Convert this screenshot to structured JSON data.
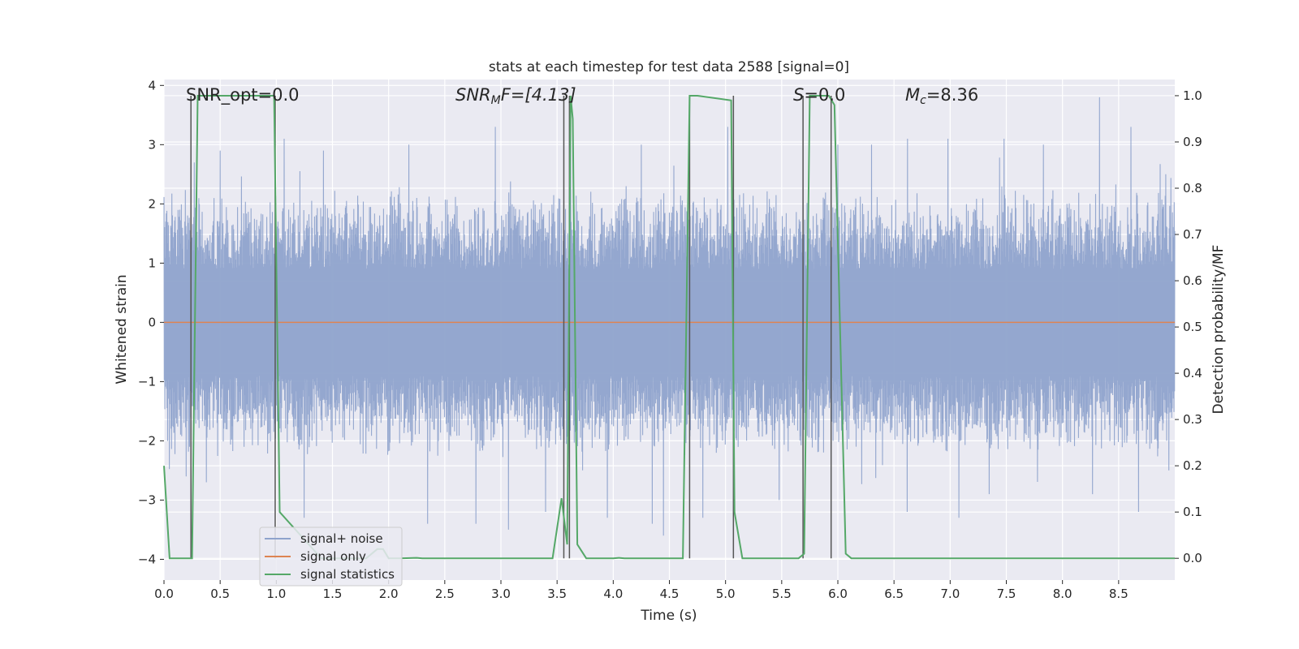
{
  "chart_data": {
    "type": "line",
    "title": "stats at each timestep for test data 2588 [signal=0]",
    "xlabel": "Time (s)",
    "ylabel_left": "Whitened strain",
    "ylabel_right": "Detection probability/MF",
    "xlim": [
      0.0,
      9.0
    ],
    "ylim_left": [
      -4.35,
      4.1
    ],
    "ylim_right": [
      -0.047,
      1.035
    ],
    "x_ticks": [
      0.0,
      0.5,
      1.0,
      1.5,
      2.0,
      2.5,
      3.0,
      3.5,
      4.0,
      4.5,
      5.0,
      5.5,
      6.0,
      6.5,
      7.0,
      7.5,
      8.0,
      8.5
    ],
    "x_tick_labels": [
      "0.0",
      "0.5",
      "1.0",
      "1.5",
      "2.0",
      "2.5",
      "3.0",
      "3.5",
      "4.0",
      "4.5",
      "5.0",
      "5.5",
      "6.0",
      "6.5",
      "7.0",
      "7.5",
      "8.0",
      "8.5"
    ],
    "y_ticks_left": [
      -4,
      -3,
      -2,
      -1,
      0,
      1,
      2,
      3,
      4
    ],
    "y_tick_labels_left": [
      "−4",
      "−3",
      "−2",
      "−1",
      "0",
      "1",
      "2",
      "3",
      "4"
    ],
    "y_ticks_right": [
      0.0,
      0.1,
      0.2,
      0.3,
      0.4,
      0.5,
      0.6,
      0.7,
      0.8,
      0.9,
      1.0
    ],
    "y_tick_labels_right": [
      "0.0",
      "0.1",
      "0.2",
      "0.3",
      "0.4",
      "0.5",
      "0.6",
      "0.7",
      "0.8",
      "0.9",
      "1.0"
    ],
    "grid": true,
    "annotations": [
      {
        "id": "snr-opt",
        "text": "SNR_opt=0.0",
        "x": 0.2
      },
      {
        "id": "snr-mf",
        "text": "SNR_MF=[4.13]",
        "x": 2.6
      },
      {
        "id": "s-stat",
        "text": "S=0.0",
        "x": 5.6
      },
      {
        "id": "chirp-mass",
        "text": "M_c=8.36",
        "x": 6.6
      }
    ],
    "annotation_display": {
      "snr_mf_base": "SNR",
      "snr_mf_sub": "M",
      "snr_mf_rest": "F=[4.13]",
      "s_stat_base": "S",
      "s_stat_rest": "=0.0",
      "chirp_base": "M",
      "chirp_sub": "c",
      "chirp_rest": "=8.36"
    },
    "legend": {
      "location": "lower-left",
      "entries": [
        "signal+ noise",
        "signal only",
        "signal statistics"
      ]
    },
    "colors": {
      "noise": "#8fa3cc",
      "signal": "#dd8452",
      "stats": "#55a868",
      "markers": "#555555",
      "axes_bg": "#eaeaf2",
      "grid": "#ffffff"
    },
    "noise_series": {
      "name": "signal+ noise",
      "axis": "left",
      "sample_rate": 400,
      "typical_range": [
        -2.0,
        2.0
      ],
      "positive_spikes": [
        [
          0.27,
          2.7
        ],
        [
          0.5,
          2.9
        ],
        [
          1.07,
          3.1
        ],
        [
          1.42,
          2.9
        ],
        [
          2.18,
          3.0
        ],
        [
          2.95,
          3.3
        ],
        [
          3.62,
          3.6
        ],
        [
          4.25,
          3.0
        ],
        [
          5.02,
          3.3
        ],
        [
          6.0,
          3.0
        ],
        [
          6.3,
          3.0
        ],
        [
          6.62,
          3.1
        ],
        [
          6.98,
          3.1
        ],
        [
          7.48,
          3.1
        ],
        [
          7.83,
          3.0
        ],
        [
          8.33,
          3.8
        ],
        [
          8.61,
          3.3
        ],
        [
          8.92,
          2.5
        ]
      ],
      "negative_spikes": [
        [
          0.2,
          -2.6
        ],
        [
          0.38,
          -2.7
        ],
        [
          1.25,
          -3.3
        ],
        [
          2.35,
          -3.4
        ],
        [
          2.78,
          -3.4
        ],
        [
          3.07,
          -3.5
        ],
        [
          3.4,
          -3.2
        ],
        [
          3.95,
          -3.3
        ],
        [
          4.35,
          -3.4
        ],
        [
          4.45,
          -3.6
        ],
        [
          4.8,
          -3.3
        ],
        [
          5.48,
          -3.0
        ],
        [
          6.62,
          -3.2
        ],
        [
          7.08,
          -3.3
        ],
        [
          7.35,
          -2.9
        ],
        [
          8.27,
          -2.9
        ],
        [
          8.68,
          -3.2
        ],
        [
          8.95,
          -2.5
        ]
      ]
    },
    "signal_series": {
      "name": "signal only",
      "axis": "left",
      "x": [
        0.0,
        9.0
      ],
      "y": [
        0.0,
        0.0
      ]
    },
    "stats_series": {
      "name": "signal statistics",
      "axis": "right",
      "x": [
        0.0,
        0.05,
        0.25,
        0.3,
        0.98,
        1.03,
        1.4,
        1.8,
        1.9,
        1.95,
        2.0,
        2.1,
        2.25,
        2.3,
        3.46,
        3.54,
        3.59,
        3.62,
        3.64,
        3.68,
        3.76,
        4.0,
        4.05,
        4.1,
        4.62,
        4.68,
        4.75,
        5.05,
        5.08,
        5.15,
        5.2,
        5.65,
        5.7,
        5.75,
        5.92,
        5.97,
        6.07,
        6.12,
        9.0
      ],
      "y": [
        0.2,
        0.0,
        0.0,
        1.0,
        1.0,
        0.1,
        0.0,
        0.0,
        0.02,
        0.02,
        0.0,
        0.0,
        0.001,
        0.0,
        0.0,
        0.13,
        0.03,
        1.0,
        0.95,
        0.03,
        0.0,
        0.0,
        0.001,
        0.0,
        0.0,
        1.0,
        1.0,
        0.99,
        0.1,
        0.0,
        0.0,
        0.0,
        0.01,
        1.0,
        1.0,
        0.98,
        0.01,
        0.0,
        0.0
      ]
    },
    "marker_lines": [
      0.24,
      0.99,
      3.56,
      3.61,
      4.68,
      5.07,
      5.69,
      5.94
    ]
  }
}
